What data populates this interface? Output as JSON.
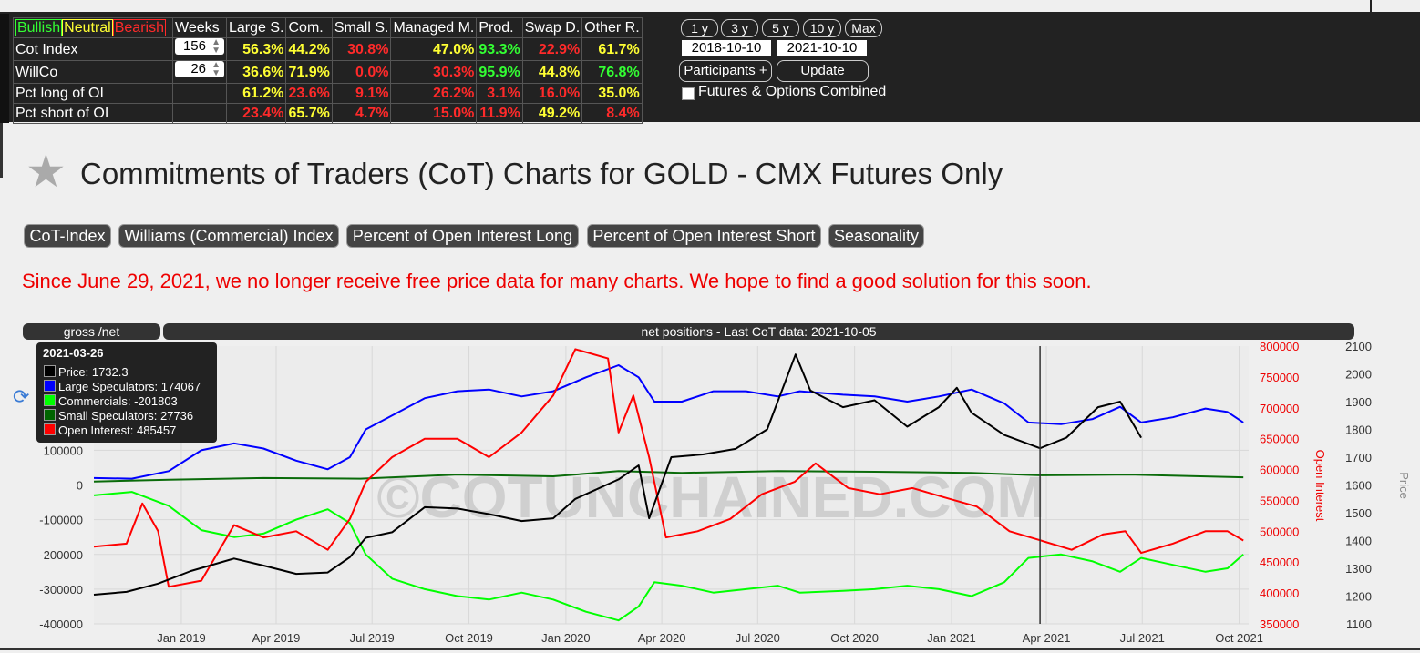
{
  "legend_labels": {
    "bullish": "Bullish",
    "neutral": "Neutral",
    "bearish": "Bearish"
  },
  "table": {
    "headers": [
      "Weeks",
      "Large S.",
      "Com.",
      "Small S.",
      "Managed M.",
      "Prod.",
      "Swap D.",
      "Other R."
    ],
    "rows": [
      {
        "label": "Cot Index",
        "weeks": "156",
        "values": [
          "56.3%",
          "44.2%",
          "30.8%",
          "47.0%",
          "93.3%",
          "22.9%",
          "61.7%"
        ],
        "colors": [
          "y",
          "y",
          "r",
          "y",
          "g",
          "r",
          "y"
        ]
      },
      {
        "label": "WillCo",
        "weeks": "26",
        "values": [
          "36.6%",
          "71.9%",
          "0.0%",
          "30.3%",
          "95.9%",
          "44.8%",
          "76.8%"
        ],
        "colors": [
          "y",
          "y",
          "r",
          "r",
          "g",
          "y",
          "g"
        ]
      },
      {
        "label": "Pct long of OI",
        "weeks": "",
        "values": [
          "61.2%",
          "23.6%",
          "9.1%",
          "26.2%",
          "3.1%",
          "16.0%",
          "35.0%"
        ],
        "colors": [
          "y",
          "r",
          "r",
          "r",
          "r",
          "r",
          "y"
        ]
      },
      {
        "label": "Pct short of OI",
        "weeks": "",
        "values": [
          "23.4%",
          "65.7%",
          "4.7%",
          "15.0%",
          "11.9%",
          "49.2%",
          "8.4%"
        ],
        "colors": [
          "r",
          "y",
          "r",
          "r",
          "r",
          "y",
          "r"
        ]
      }
    ]
  },
  "controls": {
    "ranges": [
      "1 y",
      "3 y",
      "5 y",
      "10 y",
      "Max"
    ],
    "date_from": "2018-10-10",
    "date_to": "2021-10-10",
    "participants": "Participants +",
    "update": "Update",
    "combined": "Futures & Options Combined"
  },
  "page_title": "Commitments of Traders (CoT) Charts for GOLD - CMX Futures Only",
  "nav": [
    "CoT-Index",
    "Williams (Commercial) Index",
    "Percent of Open Interest Long",
    "Percent of Open Interest Short",
    "Seasonality"
  ],
  "notice": "Since June 29, 2021, we no longer receive free price data for many charts. We hope to find a good solution for this soon.",
  "chart_header": {
    "left": "gross /net",
    "right": "net positions - Last CoT data: 2021-10-05"
  },
  "tooltip": {
    "date": "2021-03-26",
    "items": [
      {
        "text": "Price: 1732.3",
        "color": "#000000"
      },
      {
        "text": "Large Speculators: 174067",
        "color": "#0000ff"
      },
      {
        "text": "Commercials: -201803",
        "color": "#00ff00"
      },
      {
        "text": "Small Speculators: 27736",
        "color": "#006400"
      },
      {
        "text": "Open Interest: 485457",
        "color": "#ff0000"
      }
    ]
  },
  "watermark": "©COTUNCHAINED.COM",
  "colors": {
    "price": "#000000",
    "large": "#0000ff",
    "commercials": "#00ff00",
    "small": "#0a6b0a",
    "oi": "#ff0000"
  },
  "chart_data": {
    "type": "line",
    "x_ticks": [
      "Jan 2019",
      "Apr 2019",
      "Jul 2019",
      "Oct 2019",
      "Jan 2020",
      "Apr 2020",
      "Jul 2020",
      "Oct 2020",
      "Jan 2021",
      "Apr 2021",
      "Jul 2021",
      "Oct 2021"
    ],
    "x_range": [
      "2018-10-10",
      "2021-10-10"
    ],
    "y_left": {
      "ticks": [
        "100000",
        "0",
        "-100000",
        "-200000",
        "-300000",
        "-400000"
      ],
      "range": [
        -400000,
        400000
      ]
    },
    "y_oi": {
      "label": "Open Interest",
      "ticks": [
        "800000",
        "750000",
        "700000",
        "650000",
        "600000",
        "550000",
        "500000",
        "450000",
        "400000",
        "350000"
      ],
      "range": [
        350000,
        800000
      ]
    },
    "y_price": {
      "label": "Price",
      "ticks": [
        "2100",
        "2000",
        "1900",
        "1800",
        "1700",
        "1600",
        "1500",
        "1400",
        "1300",
        "1200",
        "1100"
      ],
      "range": [
        1100,
        2100
      ]
    },
    "crosshair_date": "2021-03-26",
    "series": [
      {
        "name": "Large Speculators",
        "axis": "left",
        "points": [
          [
            "2018-10-10",
            20000
          ],
          [
            "2018-11-15",
            18000
          ],
          [
            "2018-12-20",
            40000
          ],
          [
            "2019-01-20",
            100000
          ],
          [
            "2019-02-20",
            120000
          ],
          [
            "2019-03-20",
            105000
          ],
          [
            "2019-04-20",
            70000
          ],
          [
            "2019-05-20",
            45000
          ],
          [
            "2019-06-10",
            80000
          ],
          [
            "2019-06-25",
            160000
          ],
          [
            "2019-07-20",
            200000
          ],
          [
            "2019-08-20",
            250000
          ],
          [
            "2019-09-20",
            270000
          ],
          [
            "2019-10-20",
            275000
          ],
          [
            "2019-11-20",
            255000
          ],
          [
            "2019-12-20",
            270000
          ],
          [
            "2020-01-20",
            310000
          ],
          [
            "2020-02-20",
            345000
          ],
          [
            "2020-03-10",
            310000
          ],
          [
            "2020-03-25",
            240000
          ],
          [
            "2020-04-20",
            240000
          ],
          [
            "2020-05-20",
            270000
          ],
          [
            "2020-06-20",
            270000
          ],
          [
            "2020-07-20",
            255000
          ],
          [
            "2020-08-10",
            270000
          ],
          [
            "2020-09-20",
            260000
          ],
          [
            "2020-10-20",
            255000
          ],
          [
            "2020-11-20",
            240000
          ],
          [
            "2020-12-20",
            255000
          ],
          [
            "2021-01-20",
            275000
          ],
          [
            "2021-02-20",
            235000
          ],
          [
            "2021-03-15",
            180000
          ],
          [
            "2021-04-15",
            175000
          ],
          [
            "2021-05-15",
            190000
          ],
          [
            "2021-06-10",
            225000
          ],
          [
            "2021-06-30",
            180000
          ],
          [
            "2021-07-30",
            195000
          ],
          [
            "2021-08-30",
            220000
          ],
          [
            "2021-09-20",
            210000
          ],
          [
            "2021-10-05",
            180000
          ]
        ]
      },
      {
        "name": "Commercials",
        "axis": "left",
        "points": [
          [
            "2018-10-10",
            -30000
          ],
          [
            "2018-11-15",
            -20000
          ],
          [
            "2018-12-20",
            -60000
          ],
          [
            "2019-01-20",
            -130000
          ],
          [
            "2019-02-20",
            -150000
          ],
          [
            "2019-03-20",
            -140000
          ],
          [
            "2019-04-20",
            -100000
          ],
          [
            "2019-05-20",
            -70000
          ],
          [
            "2019-06-10",
            -110000
          ],
          [
            "2019-06-25",
            -200000
          ],
          [
            "2019-07-20",
            -270000
          ],
          [
            "2019-08-20",
            -300000
          ],
          [
            "2019-09-20",
            -320000
          ],
          [
            "2019-10-20",
            -330000
          ],
          [
            "2019-11-20",
            -310000
          ],
          [
            "2019-12-20",
            -330000
          ],
          [
            "2020-01-20",
            -365000
          ],
          [
            "2020-02-20",
            -390000
          ],
          [
            "2020-03-10",
            -350000
          ],
          [
            "2020-03-25",
            -280000
          ],
          [
            "2020-04-20",
            -290000
          ],
          [
            "2020-05-20",
            -310000
          ],
          [
            "2020-06-20",
            -300000
          ],
          [
            "2020-07-20",
            -290000
          ],
          [
            "2020-08-10",
            -310000
          ],
          [
            "2020-09-20",
            -305000
          ],
          [
            "2020-10-20",
            -300000
          ],
          [
            "2020-11-20",
            -290000
          ],
          [
            "2020-12-20",
            -300000
          ],
          [
            "2021-01-20",
            -320000
          ],
          [
            "2021-02-20",
            -280000
          ],
          [
            "2021-03-15",
            -210000
          ],
          [
            "2021-04-15",
            -200000
          ],
          [
            "2021-05-15",
            -220000
          ],
          [
            "2021-06-10",
            -250000
          ],
          [
            "2021-06-30",
            -210000
          ],
          [
            "2021-07-30",
            -230000
          ],
          [
            "2021-08-30",
            -250000
          ],
          [
            "2021-09-20",
            -240000
          ],
          [
            "2021-10-05",
            -200000
          ]
        ]
      },
      {
        "name": "Small Speculators",
        "axis": "left",
        "points": [
          [
            "2018-10-10",
            10000
          ],
          [
            "2018-12-20",
            15000
          ],
          [
            "2019-03-20",
            20000
          ],
          [
            "2019-06-20",
            18000
          ],
          [
            "2019-09-20",
            30000
          ],
          [
            "2019-12-20",
            25000
          ],
          [
            "2020-02-20",
            40000
          ],
          [
            "2020-04-20",
            35000
          ],
          [
            "2020-07-20",
            40000
          ],
          [
            "2020-10-20",
            38000
          ],
          [
            "2021-01-20",
            35000
          ],
          [
            "2021-03-26",
            27736
          ],
          [
            "2021-06-20",
            30000
          ],
          [
            "2021-10-05",
            22000
          ]
        ]
      },
      {
        "name": "Open Interest",
        "axis": "oi",
        "points": [
          [
            "2018-10-10",
            475000
          ],
          [
            "2018-11-10",
            480000
          ],
          [
            "2018-11-25",
            545000
          ],
          [
            "2018-12-10",
            500000
          ],
          [
            "2018-12-20",
            410000
          ],
          [
            "2019-01-20",
            420000
          ],
          [
            "2019-02-20",
            510000
          ],
          [
            "2019-03-20",
            490000
          ],
          [
            "2019-04-20",
            500000
          ],
          [
            "2019-05-20",
            470000
          ],
          [
            "2019-06-10",
            520000
          ],
          [
            "2019-06-25",
            580000
          ],
          [
            "2019-07-20",
            620000
          ],
          [
            "2019-08-20",
            650000
          ],
          [
            "2019-09-20",
            650000
          ],
          [
            "2019-10-20",
            620000
          ],
          [
            "2019-11-20",
            660000
          ],
          [
            "2019-12-20",
            720000
          ],
          [
            "2020-01-10",
            795000
          ],
          [
            "2020-02-10",
            780000
          ],
          [
            "2020-02-20",
            660000
          ],
          [
            "2020-03-05",
            720000
          ],
          [
            "2020-03-20",
            620000
          ],
          [
            "2020-04-05",
            490000
          ],
          [
            "2020-05-05",
            500000
          ],
          [
            "2020-06-05",
            520000
          ],
          [
            "2020-07-05",
            560000
          ],
          [
            "2020-08-05",
            580000
          ],
          [
            "2020-08-25",
            610000
          ],
          [
            "2020-09-25",
            570000
          ],
          [
            "2020-10-25",
            560000
          ],
          [
            "2020-11-25",
            570000
          ],
          [
            "2020-12-25",
            555000
          ],
          [
            "2021-01-25",
            540000
          ],
          [
            "2021-02-25",
            500000
          ],
          [
            "2021-03-26",
            485457
          ],
          [
            "2021-04-25",
            470000
          ],
          [
            "2021-05-25",
            495000
          ],
          [
            "2021-06-15",
            500000
          ],
          [
            "2021-06-30",
            465000
          ],
          [
            "2021-07-30",
            480000
          ],
          [
            "2021-08-30",
            500000
          ],
          [
            "2021-09-20",
            500000
          ],
          [
            "2021-10-05",
            485000
          ]
        ]
      },
      {
        "name": "Price",
        "axis": "price",
        "points": [
          [
            "2018-10-10",
            1205
          ],
          [
            "2018-11-10",
            1215
          ],
          [
            "2018-12-10",
            1245
          ],
          [
            "2019-01-10",
            1290
          ],
          [
            "2019-02-20",
            1335
          ],
          [
            "2019-03-20",
            1310
          ],
          [
            "2019-04-20",
            1280
          ],
          [
            "2019-05-20",
            1285
          ],
          [
            "2019-06-10",
            1340
          ],
          [
            "2019-06-25",
            1410
          ],
          [
            "2019-07-20",
            1430
          ],
          [
            "2019-08-20",
            1520
          ],
          [
            "2019-09-20",
            1515
          ],
          [
            "2019-10-20",
            1495
          ],
          [
            "2019-11-20",
            1470
          ],
          [
            "2019-12-20",
            1480
          ],
          [
            "2020-01-10",
            1550
          ],
          [
            "2020-02-20",
            1620
          ],
          [
            "2020-03-10",
            1670
          ],
          [
            "2020-03-20",
            1480
          ],
          [
            "2020-04-10",
            1700
          ],
          [
            "2020-05-10",
            1710
          ],
          [
            "2020-06-10",
            1730
          ],
          [
            "2020-07-10",
            1800
          ],
          [
            "2020-08-06",
            2070
          ],
          [
            "2020-08-20",
            1940
          ],
          [
            "2020-09-20",
            1880
          ],
          [
            "2020-10-20",
            1905
          ],
          [
            "2020-11-20",
            1810
          ],
          [
            "2020-12-20",
            1880
          ],
          [
            "2021-01-06",
            1950
          ],
          [
            "2021-01-20",
            1860
          ],
          [
            "2021-02-20",
            1780
          ],
          [
            "2021-03-26",
            1732
          ],
          [
            "2021-04-20",
            1770
          ],
          [
            "2021-05-20",
            1880
          ],
          [
            "2021-06-10",
            1900
          ],
          [
            "2021-06-30",
            1770
          ]
        ]
      }
    ]
  }
}
